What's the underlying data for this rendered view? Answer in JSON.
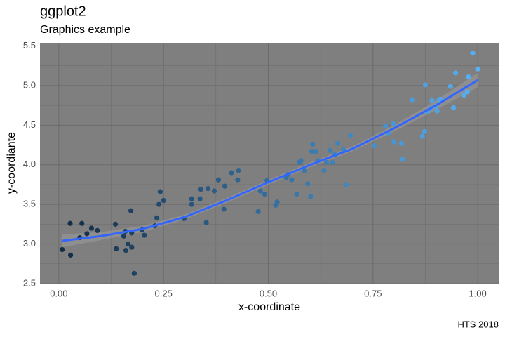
{
  "chart_data": {
    "type": "scatter",
    "title": "ggplot2",
    "subtitle": "Graphics example",
    "x_label": "x-coordinate",
    "y_label": "y-coordiante",
    "caption": "HTS 2018",
    "xlim": [
      -0.045,
      1.05
    ],
    "ylim": [
      2.5,
      5.54
    ],
    "xticks": [
      {
        "value": 0,
        "label": "0.00"
      },
      {
        "value": 0.25,
        "label": "0.25"
      },
      {
        "value": 0.5,
        "label": "0.50"
      },
      {
        "value": 0.75,
        "label": "0.75"
      },
      {
        "value": 1,
        "label": "1.00"
      }
    ],
    "yticks": [
      2.5,
      {
        "value": 3,
        "label": "3.0"
      },
      3.5,
      {
        "value": 4,
        "label": "4.0"
      },
      4.5,
      {
        "value": 5,
        "label": "5.0"
      },
      5.5
    ],
    "xminor": [
      0.125,
      0.375,
      0.625,
      0.875
    ],
    "yminor": [
      2.75,
      3.25,
      3.75,
      4.25,
      4.75,
      5.25
    ],
    "grid": true,
    "panel_color": "#7f7f7f",
    "grid_color": "#6b6b6b",
    "color_low": "#132b43",
    "color_high": "#56b1f7",
    "x": [
      0.008,
      0.027,
      0.028,
      0.05,
      0.055,
      0.067,
      0.078,
      0.092,
      0.135,
      0.137,
      0.155,
      0.159,
      0.16,
      0.165,
      0.172,
      0.174,
      0.174,
      0.18,
      0.199,
      0.204,
      0.229,
      0.234,
      0.239,
      0.242,
      0.25,
      0.299,
      0.317,
      0.317,
      0.337,
      0.339,
      0.352,
      0.356,
      0.371,
      0.381,
      0.394,
      0.396,
      0.412,
      0.427,
      0.429,
      0.476,
      0.481,
      0.491,
      0.497,
      0.518,
      0.521,
      0.543,
      0.548,
      0.556,
      0.568,
      0.574,
      0.578,
      0.586,
      0.594,
      0.601,
      0.604,
      0.606,
      0.614,
      0.618,
      0.633,
      0.639,
      0.648,
      0.653,
      0.659,
      0.666,
      0.679,
      0.686,
      0.696,
      0.753,
      0.78,
      0.786,
      0.798,
      0.8,
      0.818,
      0.82,
      0.843,
      0.868,
      0.873,
      0.875,
      0.88,
      0.886,
      0.891,
      0.9,
      0.903,
      0.908,
      0.911,
      0.935,
      0.942,
      0.947,
      0.967,
      0.975,
      0.978,
      0.988,
      1.0
    ],
    "values": [
      2.93,
      3.26,
      2.86,
      3.08,
      3.26,
      3.13,
      3.2,
      3.17,
      3.25,
      2.94,
      3.1,
      3.16,
      2.92,
      3.0,
      3.42,
      3.14,
      2.96,
      2.63,
      3.18,
      3.11,
      3.23,
      3.33,
      3.5,
      3.66,
      3.55,
      3.32,
      3.57,
      3.5,
      3.57,
      3.69,
      3.27,
      3.7,
      3.67,
      3.81,
      3.44,
      3.73,
      3.9,
      3.81,
      3.93,
      3.41,
      3.67,
      3.63,
      3.8,
      3.49,
      3.53,
      3.84,
      3.88,
      3.81,
      3.63,
      4.03,
      4.05,
      3.93,
      3.76,
      3.6,
      4.17,
      4.26,
      4.17,
      4.05,
      3.93,
      4.03,
      4.18,
      4.03,
      4.13,
      4.27,
      4.19,
      3.75,
      4.37,
      4.24,
      4.49,
      4.4,
      4.52,
      4.29,
      4.27,
      4.07,
      4.82,
      4.36,
      4.42,
      5.01,
      4.67,
      4.71,
      4.81,
      4.74,
      4.68,
      4.82,
      4.83,
      4.99,
      4.72,
      5.16,
      4.88,
      4.92,
      5.11,
      5.41,
      5.21
    ],
    "smooth": {
      "color": "#3366ff",
      "band_color": "#999999",
      "x": [
        0.008,
        0.1,
        0.2,
        0.3,
        0.4,
        0.5,
        0.6,
        0.7,
        0.8,
        0.9,
        1.0
      ],
      "values": [
        3.04,
        3.1,
        3.19,
        3.34,
        3.55,
        3.78,
        4.0,
        4.2,
        4.46,
        4.75,
        5.07
      ],
      "lower": [
        2.96,
        3.05,
        3.15,
        3.31,
        3.52,
        3.75,
        3.97,
        4.17,
        4.42,
        4.69,
        4.98
      ],
      "upper": [
        3.12,
        3.15,
        3.23,
        3.37,
        3.58,
        3.81,
        4.03,
        4.23,
        4.5,
        4.81,
        5.16
      ]
    }
  }
}
